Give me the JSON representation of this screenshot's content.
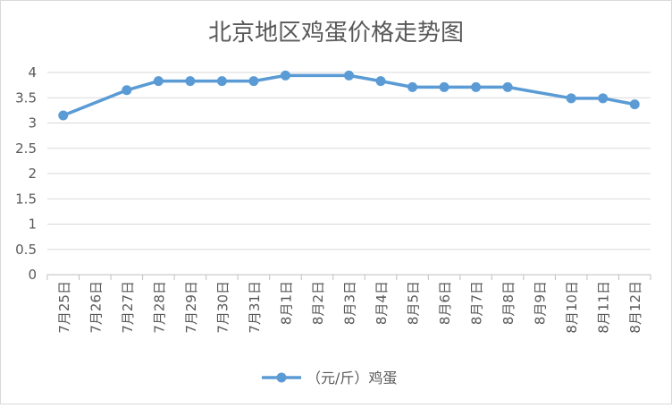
{
  "chart_data": {
    "type": "line",
    "title": "北京地区鸡蛋价格走势图",
    "xlabel": "",
    "ylabel": "",
    "categories": [
      "7月25日",
      "7月26日",
      "7月27日",
      "7月28日",
      "7月29日",
      "7月30日",
      "7月31日",
      "8月1日",
      "8月2日",
      "8月3日",
      "8月4日",
      "8月5日",
      "8月6日",
      "8月7日",
      "8月8日",
      "8月9日",
      "8月10日",
      "8月11日",
      "8月12日"
    ],
    "series": [
      {
        "name": "（元/斤）鸡蛋",
        "color": "#5b9bd5",
        "values": [
          3.15,
          null,
          3.65,
          3.83,
          3.83,
          3.83,
          3.83,
          3.94,
          null,
          3.94,
          3.83,
          3.71,
          3.71,
          3.71,
          3.71,
          null,
          3.49,
          3.49,
          3.37
        ]
      }
    ],
    "y_ticks": [
      "0",
      "0.5",
      "1",
      "1.5",
      "2",
      "2.5",
      "3",
      "3.5",
      "4"
    ],
    "ylim": [
      0,
      4
    ],
    "grid": true,
    "legend_position": "bottom"
  }
}
